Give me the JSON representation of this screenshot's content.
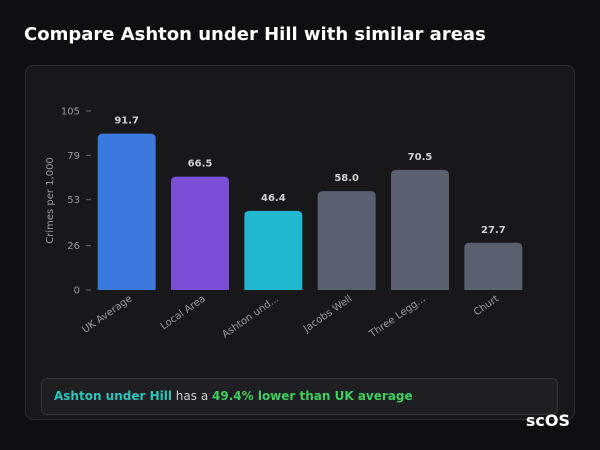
{
  "chart_data": {
    "type": "bar",
    "title": "Compare Ashton under Hill with similar areas",
    "y_label": "Crimes per 1,000",
    "categories": [
      "UK Average",
      "Local Area",
      "Ashton und...",
      "Jacobs Well",
      "Three Legg...",
      "Churt"
    ],
    "values": [
      91.7,
      66.5,
      46.4,
      58.0,
      70.5,
      27.7
    ],
    "value_labels": [
      "91.7",
      "66.5",
      "46.4",
      "58.0",
      "70.5",
      "27.7"
    ],
    "colors": [
      "#3b78dc",
      "#7b4fd6",
      "#22b8d0",
      "#5a6070",
      "#5a6070",
      "#5a6070"
    ],
    "ylim": [
      0,
      105
    ],
    "yticks": [
      0,
      26,
      53,
      79,
      105
    ]
  },
  "note": {
    "area": "Ashton under Hill",
    "middle": "has a",
    "highlight": "49.4% lower than UK average"
  },
  "logo": "scOS"
}
